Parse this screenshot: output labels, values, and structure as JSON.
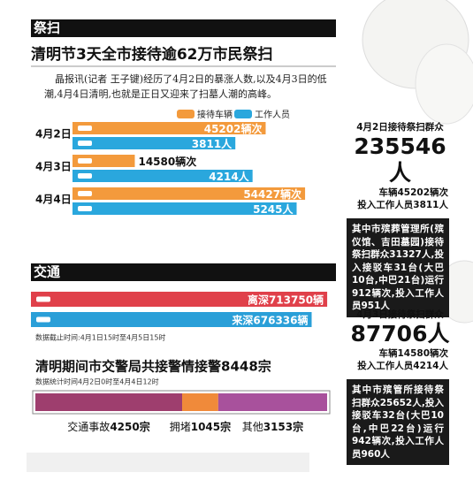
{
  "sections": [
    "祭扫",
    "交通"
  ],
  "header": {
    "title": "清明节3天全市接待逾62万市民祭扫",
    "intro": "晶报讯(记者 王子键)经历了4月2日的暴涨人数,以及4月3日的低潮,4月4日清明,也就是正日又迎来了扫墓人潮的高峰。"
  },
  "chart_data": [
    {
      "type": "bar",
      "orientation": "horizontal",
      "categories": [
        "4月2日",
        "4月3日",
        "4月4日"
      ],
      "series": [
        {
          "name": "接待车辆",
          "color": "#f39a3c",
          "values": [
            45202,
            14580,
            54427
          ],
          "value_labels": [
            "45202辆次",
            "14580辆次",
            "54427辆次"
          ]
        },
        {
          "name": "工作人员",
          "color": "#2aa7dd",
          "axis": "x2",
          "values": [
            3811,
            4214,
            5245
          ],
          "value_labels": [
            "3811人",
            "4214人",
            "5245人"
          ]
        }
      ],
      "xlim": [
        0,
        60000
      ],
      "x2lim": [
        0,
        6000
      ]
    },
    {
      "type": "bar",
      "orientation": "horizontal",
      "categories": [
        "离深",
        "来深"
      ],
      "values": [
        713750,
        676336
      ],
      "value_labels": [
        "713750辆",
        "676336辆"
      ],
      "colors": [
        "#e0404a",
        "#2a9fd8"
      ],
      "xlim": [
        0,
        720000
      ],
      "note": "数据截止时间:4月1日15时至4月5日15时"
    },
    {
      "type": "stacked_bar",
      "title": "清明期间市交警局共接警情接警8448宗",
      "note": "数据统计时间4月2日0时至4月4日12时",
      "series": [
        {
          "name": "交通事故",
          "color": "#9e3e6e",
          "values": [
            4250
          ],
          "value_labels": [
            "4250宗"
          ]
        },
        {
          "name": "拥堵",
          "color": "#f08a3a",
          "values": [
            1045
          ],
          "value_labels": [
            "1045宗"
          ]
        },
        {
          "name": "其他",
          "color": "#a8519c",
          "values": [
            3153
          ],
          "value_labels": [
            "3153宗"
          ]
        }
      ],
      "xlim": [
        0,
        8448
      ]
    }
  ],
  "side_panels": [
    {
      "heading": "4月2日接待祭扫群众",
      "total": "235546人",
      "vehicles": "车辆45202辆次",
      "staff": "投入工作人员3811人",
      "detail": "其中市殡葬管理所(殡仪馆、吉田墓园)接待祭扫群众31327人,投入接驳车31台(大巴10台,中巴21台)运行912辆次,投入工作人员951人"
    },
    {
      "heading": "4月3日接待祭扫群众",
      "total": "87706人",
      "vehicles": "车辆14580辆次",
      "staff": "投入工作人员4214人",
      "detail": "其中市殡管所接待祭扫群众25652人,投入接驳车32台(大巴10台,中巴22台)运行942辆次,投入工作人员960人"
    }
  ]
}
